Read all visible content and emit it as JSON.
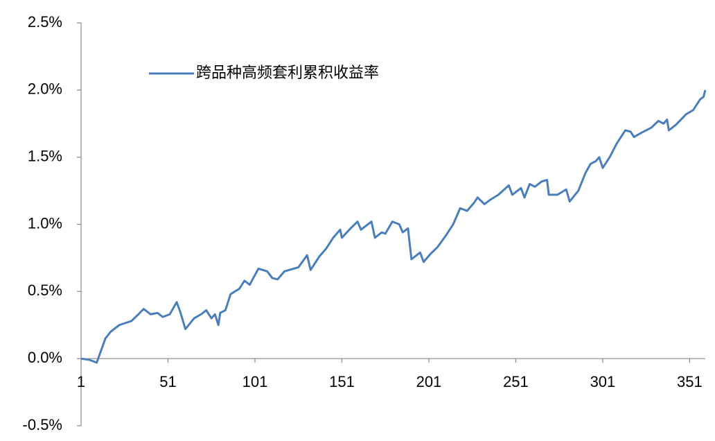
{
  "chart_data": {
    "type": "line",
    "x": [
      1,
      6,
      10,
      15,
      18,
      23,
      30,
      34,
      37,
      41,
      45,
      48,
      52,
      56,
      58,
      61,
      66,
      70,
      73,
      76,
      78,
      80,
      81,
      84,
      87,
      92,
      95,
      98,
      103,
      108,
      111,
      114,
      118,
      126,
      131,
      133,
      138,
      142,
      146,
      150,
      151,
      156,
      160,
      162,
      166,
      168,
      170,
      174,
      176,
      180,
      184,
      186,
      189,
      191,
      196,
      198,
      202,
      206,
      211,
      215,
      219,
      223,
      227,
      229,
      233,
      236,
      241,
      247,
      249,
      254,
      256,
      259,
      262,
      266,
      269,
      270,
      275,
      280,
      282,
      287,
      291,
      294,
      297,
      299,
      301,
      305,
      309,
      314,
      317,
      319,
      323,
      329,
      333,
      336,
      338,
      339,
      343,
      349,
      353,
      357,
      359,
      360
    ],
    "series": [
      {
        "name": "跨品种高频套利累积收益率",
        "color": "#4a7ebb",
        "values": [
          0,
          -0.01,
          -0.03,
          0.15,
          0.2,
          0.25,
          0.28,
          0.33,
          0.37,
          0.33,
          0.34,
          0.31,
          0.33,
          0.42,
          0.35,
          0.22,
          0.3,
          0.33,
          0.36,
          0.3,
          0.33,
          0.25,
          0.34,
          0.36,
          0.48,
          0.52,
          0.58,
          0.55,
          0.67,
          0.65,
          0.6,
          0.59,
          0.65,
          0.68,
          0.77,
          0.66,
          0.76,
          0.82,
          0.9,
          0.96,
          0.9,
          0.97,
          1.02,
          0.96,
          1.0,
          1.02,
          0.9,
          0.94,
          0.93,
          1.02,
          1.0,
          0.94,
          0.97,
          0.74,
          0.79,
          0.72,
          0.78,
          0.83,
          0.92,
          1.0,
          1.12,
          1.1,
          1.16,
          1.2,
          1.15,
          1.18,
          1.22,
          1.29,
          1.22,
          1.27,
          1.2,
          1.3,
          1.28,
          1.32,
          1.33,
          1.22,
          1.22,
          1.26,
          1.17,
          1.25,
          1.38,
          1.45,
          1.47,
          1.5,
          1.42,
          1.5,
          1.6,
          1.7,
          1.69,
          1.65,
          1.68,
          1.72,
          1.77,
          1.75,
          1.78,
          1.7,
          1.74,
          1.82,
          1.85,
          1.93,
          1.95,
          2.0
        ]
      }
    ],
    "xlim": [
      1,
      360
    ],
    "xticks": [
      1,
      51,
      101,
      151,
      201,
      251,
      301,
      351
    ],
    "ylim": [
      -0.5,
      2.5
    ],
    "yticks": [
      {
        "value": -0.5,
        "label": "-0.5%"
      },
      {
        "value": 0,
        "label": "0.0%"
      },
      {
        "value": 0.5,
        "label": "0.5%"
      },
      {
        "value": 1,
        "label": "1.0%"
      },
      {
        "value": 1.5,
        "label": "1.5%"
      },
      {
        "value": 2,
        "label": "2.0%"
      },
      {
        "value": 2.5,
        "label": "2.5%"
      }
    ],
    "legend": "top-left"
  }
}
